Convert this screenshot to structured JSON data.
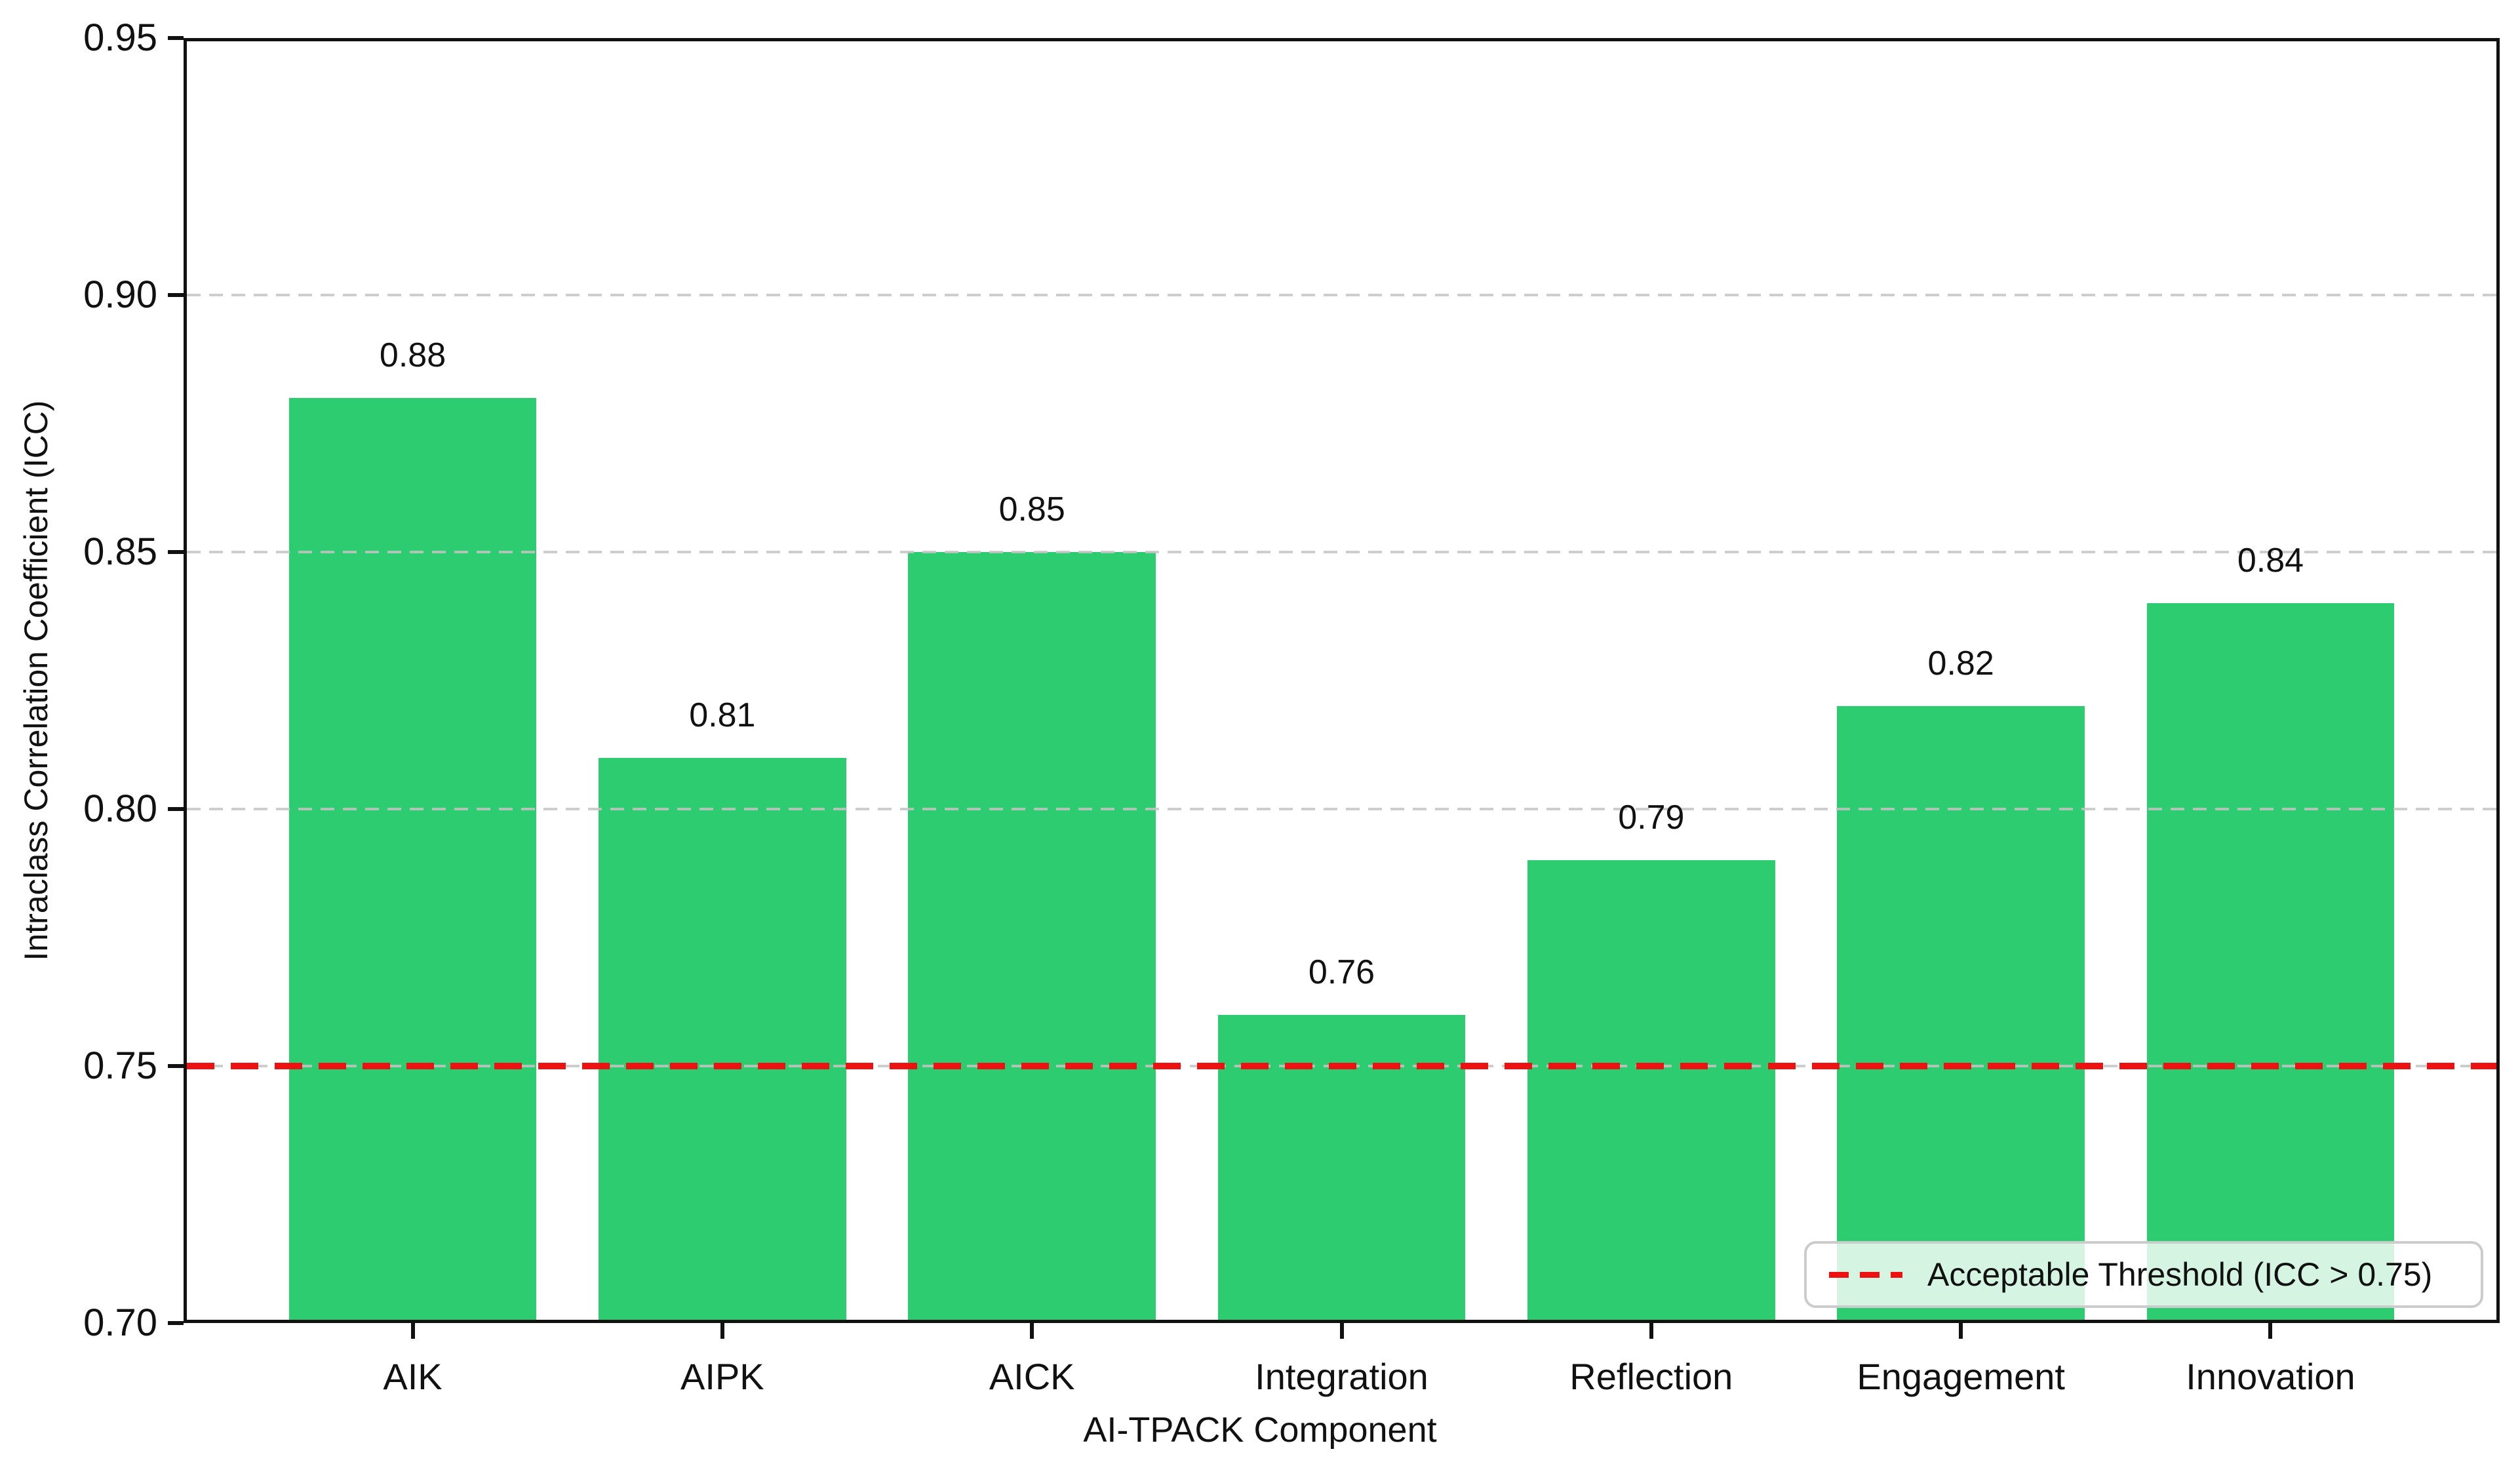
{
  "chart_data": {
    "type": "bar",
    "title": "",
    "categories": [
      "AIK",
      "AIPK",
      "AICK",
      "Integration",
      "Reflection",
      "Engagement",
      "Innovation"
    ],
    "values": [
      0.88,
      0.81,
      0.85,
      0.76,
      0.79,
      0.82,
      0.84
    ],
    "bar_labels": [
      "0.88",
      "0.81",
      "0.85",
      "0.76",
      "0.79",
      "0.82",
      "0.84"
    ],
    "xlabel": "AI-TPACK Component",
    "ylabel": "Intraclass Correlation Coefficient (ICC)",
    "ylim": [
      0.7,
      0.95
    ],
    "yticks": [
      0.7,
      0.75,
      0.8,
      0.85,
      0.9,
      0.95
    ],
    "ytick_labels": [
      "0.70",
      "0.75",
      "0.80",
      "0.85",
      "0.90",
      "0.95"
    ],
    "grid": {
      "axis": "y",
      "style": "dashed",
      "values": [
        0.75,
        0.8,
        0.85,
        0.9
      ],
      "color": "#c4c4c4"
    },
    "threshold": {
      "value": 0.75,
      "style": "dashed",
      "color": "#ee1111",
      "label": "Acceptable Threshold (ICC > 0.75)"
    },
    "legend": {
      "position": "lower right",
      "entries": [
        {
          "label": "Acceptable Threshold (ICC > 0.75)",
          "marker": "dashed-line",
          "color": "#ee1111"
        }
      ]
    },
    "colors": {
      "bar": "#2ecc71",
      "spine": "#111111",
      "text": "#111111",
      "background": "#ffffff"
    }
  }
}
